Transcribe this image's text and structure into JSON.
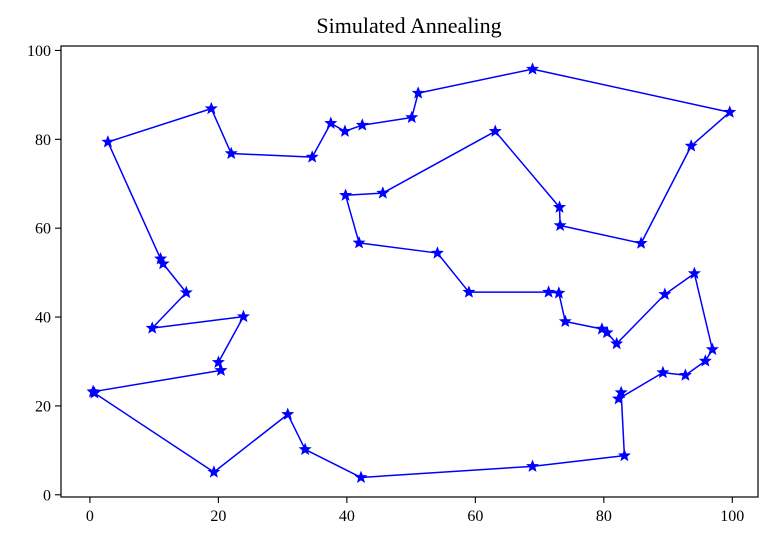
{
  "chart_data": {
    "type": "line",
    "title": "Simulated Annealing",
    "xlabel": "",
    "ylabel": "",
    "xlim": [
      -4.5,
      104
    ],
    "ylim": [
      -0.5,
      101
    ],
    "x_ticks": [
      0,
      20,
      40,
      60,
      80,
      100
    ],
    "y_ticks": [
      0,
      20,
      40,
      60,
      80,
      100
    ],
    "grid": false,
    "legend": "none",
    "marker": "star",
    "color": "#0000ff",
    "series": [
      {
        "points": [
          [
            0.5,
            23.2
          ],
          [
            0.7,
            22.9
          ],
          [
            19.3,
            5.1
          ],
          [
            30.8,
            18.1
          ],
          [
            33.5,
            10.2
          ],
          [
            42.2,
            3.9
          ],
          [
            68.9,
            6.4
          ],
          [
            83.2,
            8.8
          ],
          [
            82.7,
            23.0
          ],
          [
            82.3,
            21.6
          ],
          [
            89.2,
            27.5
          ],
          [
            92.7,
            26.9
          ],
          [
            95.8,
            30.1
          ],
          [
            96.9,
            32.7
          ],
          [
            94.1,
            49.8
          ],
          [
            89.5,
            45.1
          ],
          [
            82.0,
            34.0
          ],
          [
            80.5,
            36.5
          ],
          [
            79.7,
            37.3
          ],
          [
            74.0,
            39.0
          ],
          [
            73.0,
            45.4
          ],
          [
            71.4,
            45.6
          ],
          [
            59.0,
            45.6
          ],
          [
            54.1,
            54.4
          ],
          [
            41.9,
            56.7
          ],
          [
            39.8,
            67.4
          ],
          [
            45.6,
            67.9
          ],
          [
            63.1,
            81.8
          ],
          [
            73.1,
            64.7
          ],
          [
            73.2,
            60.6
          ],
          [
            85.8,
            56.6
          ],
          [
            93.6,
            78.5
          ],
          [
            99.6,
            86.1
          ],
          [
            68.9,
            95.8
          ],
          [
            51.1,
            90.4
          ],
          [
            50.1,
            84.9
          ],
          [
            42.4,
            83.2
          ],
          [
            39.7,
            81.8
          ],
          [
            37.5,
            83.6
          ],
          [
            34.6,
            76.0
          ],
          [
            22.0,
            76.8
          ],
          [
            18.9,
            86.9
          ],
          [
            2.8,
            79.4
          ],
          [
            11.0,
            53.1
          ],
          [
            11.4,
            52.0
          ],
          [
            15.0,
            45.5
          ],
          [
            9.7,
            37.5
          ],
          [
            23.9,
            40.1
          ],
          [
            20.0,
            29.8
          ],
          [
            20.4,
            28.0
          ],
          [
            0.5,
            23.2
          ]
        ]
      }
    ]
  }
}
